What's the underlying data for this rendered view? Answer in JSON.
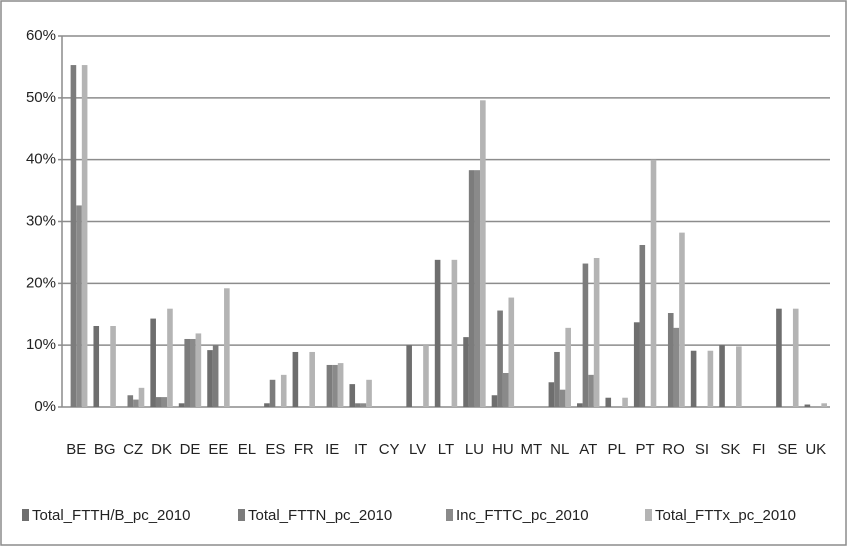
{
  "chart_data": {
    "type": "bar",
    "categories": [
      "BE",
      "BG",
      "CZ",
      "DK",
      "DE",
      "EE",
      "EL",
      "ES",
      "FR",
      "IE",
      "IT",
      "CY",
      "LV",
      "LT",
      "LU",
      "HU",
      "MT",
      "NL",
      "AT",
      "PL",
      "PT",
      "RO",
      "SI",
      "SK",
      "FI",
      "SE",
      "UK"
    ],
    "series": [
      {
        "name": "Total_FTTH/B_pc_2010",
        "color": "#6e6e6e",
        "values": [
          0,
          13.1,
          0,
          14.3,
          0.6,
          9.2,
          0,
          0.6,
          8.9,
          0,
          3.7,
          0,
          10,
          23.8,
          11.3,
          1.9,
          0,
          4,
          0.6,
          1.5,
          13.7,
          0,
          9.1,
          10,
          0,
          15.9,
          0.4
        ]
      },
      {
        "name": "Total_FTTN_pc_2010",
        "color": "#7c7c7c",
        "values": [
          55.3,
          0,
          1.9,
          1.6,
          11,
          10,
          0,
          4.4,
          0,
          6.8,
          0.6,
          0,
          0,
          0,
          38.3,
          15.6,
          0,
          8.9,
          23.2,
          0,
          26.2,
          15.2,
          0,
          0,
          0,
          0,
          0
        ]
      },
      {
        "name": "Inc_FTTC_pc_2010",
        "color": "#8a8a8a",
        "values": [
          32.6,
          0,
          1.2,
          1.6,
          11,
          0,
          0,
          0,
          0,
          6.8,
          0.6,
          0,
          0,
          0,
          38.3,
          5.5,
          0,
          2.8,
          5.2,
          0,
          0,
          12.8,
          0,
          0,
          0,
          0,
          0
        ]
      },
      {
        "name": "Total_FTTx_pc_2010",
        "color": "#b4b4b4",
        "values": [
          55.3,
          13.1,
          3.1,
          15.9,
          11.9,
          19.2,
          0,
          5.2,
          8.9,
          7.1,
          4.4,
          0,
          10,
          23.8,
          49.6,
          17.7,
          0,
          12.8,
          24.1,
          1.5,
          40,
          28.2,
          9.1,
          9.8,
          0,
          15.9,
          0.6
        ]
      }
    ],
    "ylim": [
      0,
      60
    ],
    "yticks": [
      {
        "value": 0,
        "label": "0%"
      },
      {
        "value": 10,
        "label": "10%"
      },
      {
        "value": 20,
        "label": "20%"
      },
      {
        "value": 30,
        "label": "30%"
      },
      {
        "value": 40,
        "label": "40%"
      },
      {
        "value": 50,
        "label": "50%"
      },
      {
        "value": 60,
        "label": "60%"
      }
    ],
    "grid": true
  }
}
